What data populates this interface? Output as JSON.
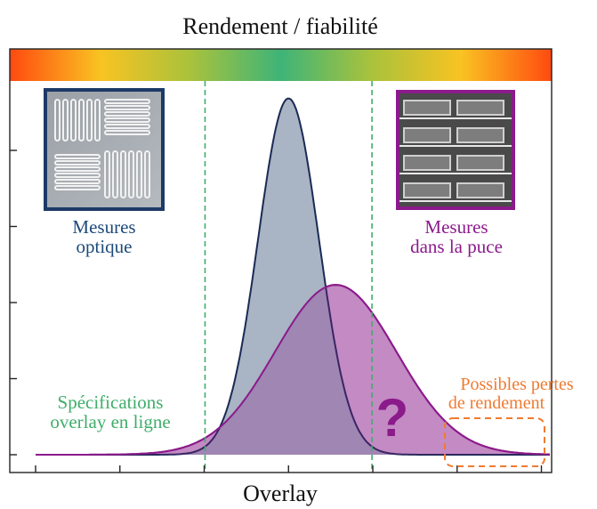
{
  "chart_data": {
    "type": "area",
    "title": "Rendement / fiabilité",
    "xlabel": "Overlay",
    "ylabel": "",
    "x_range": [
      -30,
      31
    ],
    "y_range": [
      0,
      1.0
    ],
    "grid": false,
    "series": [
      {
        "key": "optique",
        "center": 0,
        "sigma": 3.6,
        "peak": 0.965,
        "fill": "#a4b0c1",
        "stroke": "#1b2a55"
      },
      {
        "key": "puce",
        "center": 5.6,
        "sigma": 7.2,
        "peak": 0.46,
        "fill": "#c99ac9",
        "stroke": "#8b1a8b"
      }
    ],
    "spec_limits": [
      -9.9,
      9.9
    ],
    "colorbar": {
      "stops": [
        "#ff4a10",
        "#f9c322",
        "#a9c23c",
        "#3eb478",
        "#a9c23c",
        "#f9c322",
        "#ff4a10"
      ]
    },
    "annotations": {
      "optique_label_1": "Mesures",
      "optique_label_2": "optique",
      "optique_color": "#1c4a7a",
      "puce_label_1": "Mesures",
      "puce_label_2": "dans la puce",
      "puce_color": "#8b1a8b",
      "spec_label_1": "Spécifications",
      "spec_label_2": "overlay en ligne",
      "spec_color": "#3fae6a",
      "loss_label_1": "Possibles pertes",
      "loss_label_2": "de rendement",
      "loss_color": "#f07a30",
      "question_mark": "?",
      "question_color": "#8b1a8b"
    }
  }
}
